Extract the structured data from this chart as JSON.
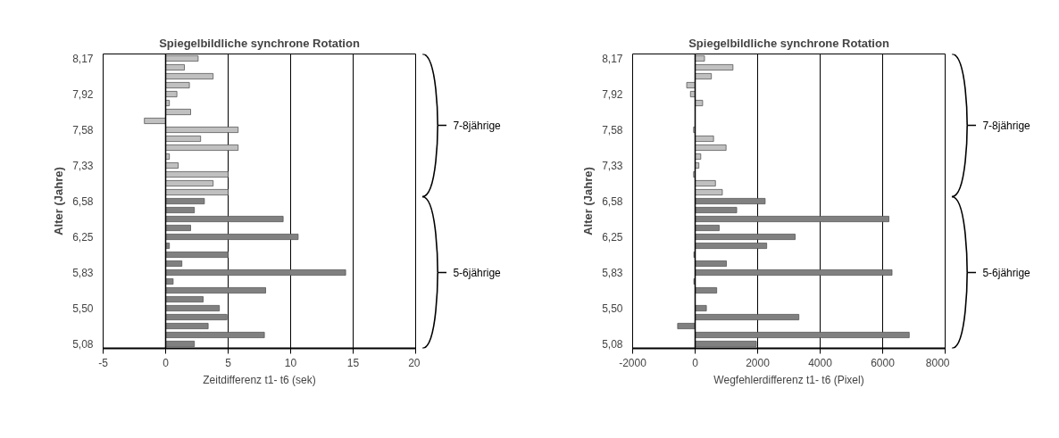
{
  "chart_data": [
    {
      "type": "bar",
      "orientation": "horizontal",
      "title": "Spiegelbildliche synchrone Rotation",
      "xlabel": "Zeitdifferenz t1- t6 (sek)",
      "ylabel": "Alter (Jahre)",
      "categories": [
        "8,17",
        null,
        null,
        null,
        "7,92",
        null,
        null,
        null,
        "7,58",
        null,
        null,
        null,
        "7,33",
        null,
        null,
        null,
        "6,58",
        null,
        null,
        null,
        "6,25",
        null,
        null,
        null,
        "5,83",
        null,
        null,
        null,
        "5,50",
        null,
        null,
        null,
        "5,08"
      ],
      "values": [
        2.6,
        1.5,
        3.8,
        1.9,
        0.9,
        0.3,
        2.0,
        -1.7,
        5.8,
        2.8,
        5.8,
        0.3,
        1.0,
        5.0,
        3.8,
        5.0,
        3.1,
        2.3,
        9.4,
        2.0,
        10.6,
        0.3,
        5.0,
        1.3,
        14.4,
        0.6,
        8.0,
        3.0,
        4.3,
        4.9,
        3.4,
        7.9,
        2.3
      ],
      "colors": [
        "#c0c0c0",
        "#c0c0c0",
        "#c0c0c0",
        "#c0c0c0",
        "#c0c0c0",
        "#c0c0c0",
        "#c0c0c0",
        "#c0c0c0",
        "#c0c0c0",
        "#c0c0c0",
        "#c0c0c0",
        "#c0c0c0",
        "#c0c0c0",
        "#c0c0c0",
        "#c0c0c0",
        "#c0c0c0",
        "#808080",
        "#808080",
        "#808080",
        "#808080",
        "#808080",
        "#808080",
        "#808080",
        "#808080",
        "#808080",
        "#808080",
        "#808080",
        "#808080",
        "#808080",
        "#808080",
        "#808080",
        "#808080",
        "#808080"
      ],
      "xlim": [
        -5,
        20
      ],
      "xticks": [
        -5,
        0,
        5,
        10,
        15,
        20
      ],
      "grid": "x",
      "annotations": [
        "7-8jährige",
        "5-6jährige"
      ]
    },
    {
      "type": "bar",
      "orientation": "horizontal",
      "title": "Spiegelbildliche synchrone Rotation",
      "xlabel": "Wegfehlerdifferenz t1- t6 (Pixel)",
      "ylabel": "Alter (Jahre)",
      "categories": [
        "8,17",
        null,
        null,
        null,
        "7,92",
        null,
        null,
        null,
        "7,58",
        null,
        null,
        null,
        "7,33",
        null,
        null,
        null,
        "6,58",
        null,
        null,
        null,
        "6,25",
        null,
        null,
        null,
        "5,83",
        null,
        null,
        null,
        "5,50",
        null,
        null,
        null,
        "5,08"
      ],
      "values": [
        300,
        1210,
        520,
        -270,
        -150,
        240,
        null,
        null,
        -50,
        590,
        990,
        180,
        120,
        -50,
        650,
        870,
        2240,
        1330,
        6200,
        770,
        3200,
        2290,
        -40,
        1000,
        6300,
        -40,
        690,
        null,
        360,
        3320,
        -560,
        6850,
        1960
      ],
      "colors": [
        "#c0c0c0",
        "#c0c0c0",
        "#c0c0c0",
        "#c0c0c0",
        "#c0c0c0",
        "#c0c0c0",
        "#c0c0c0",
        "#c0c0c0",
        "#c0c0c0",
        "#c0c0c0",
        "#c0c0c0",
        "#c0c0c0",
        "#c0c0c0",
        "#c0c0c0",
        "#c0c0c0",
        "#c0c0c0",
        "#808080",
        "#808080",
        "#808080",
        "#808080",
        "#808080",
        "#808080",
        "#808080",
        "#808080",
        "#808080",
        "#808080",
        "#808080",
        "#808080",
        "#808080",
        "#808080",
        "#808080",
        "#808080",
        "#808080"
      ],
      "xlim": [
        -2000,
        8000
      ],
      "xticks": [
        -2000,
        0,
        2000,
        4000,
        6000,
        8000
      ],
      "grid": "x",
      "annotations": [
        "7-8jährige",
        "5-6jährige"
      ]
    }
  ]
}
